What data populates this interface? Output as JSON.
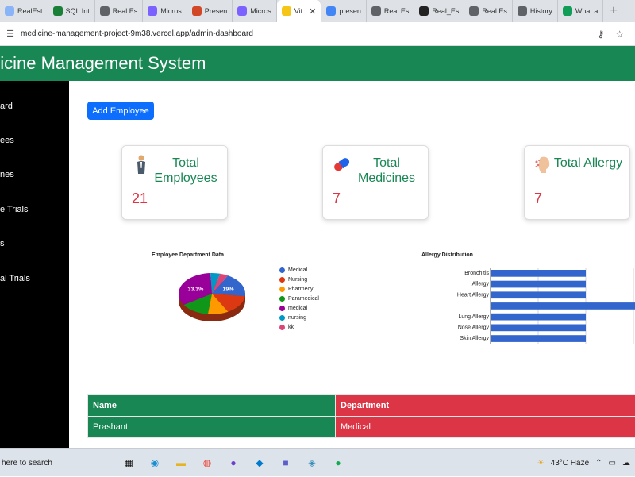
{
  "browser": {
    "tabs": [
      {
        "label": "RealEst",
        "color": "#8ab4f8"
      },
      {
        "label": "SQL Int",
        "color": "#1a7f37"
      },
      {
        "label": "Real Es",
        "color": "#5f6368"
      },
      {
        "label": "Micros",
        "color": "#7b61ff"
      },
      {
        "label": "Presen",
        "color": "#d24726"
      },
      {
        "label": "Micros",
        "color": "#7b61ff"
      },
      {
        "label": "Vit",
        "color": "#f5c518",
        "active": true
      },
      {
        "label": "presen",
        "color": "#4285f4"
      },
      {
        "label": "Real Es",
        "color": "#5f6368"
      },
      {
        "label": "Real_Es",
        "color": "#222222"
      },
      {
        "label": "Real Es",
        "color": "#5f6368"
      },
      {
        "label": "History",
        "color": "#5f6368"
      },
      {
        "label": "What a",
        "color": "#0f9d58"
      }
    ],
    "close_glyph": "✕",
    "new_tab_glyph": "+",
    "url": "medicine-management-project-9m38.vercel.app/admin-dashboard"
  },
  "app": {
    "title": "dicine Management System"
  },
  "sidebar": {
    "items": [
      "ard",
      "ees",
      "nes",
      "e Trials",
      "s",
      "al Trials"
    ]
  },
  "main": {
    "add_button": "Add Employee",
    "cards": [
      {
        "title": "Total Employees",
        "count": "21",
        "icon": "person-icon"
      },
      {
        "title": "Total Medicines",
        "count": "7",
        "icon": "capsule-icon"
      },
      {
        "title": "Total Allergy",
        "count": "7",
        "icon": "allergy-icon"
      }
    ]
  },
  "chart_data": [
    {
      "type": "pie",
      "title": "Employee Department Data",
      "categories": [
        "Medical",
        "Nursing",
        "Pharmecy",
        "Paramedical",
        "medical",
        "nursing",
        "kk"
      ],
      "values": [
        19,
        15,
        10,
        14,
        33.3,
        4.7,
        4
      ],
      "colors": [
        "#3366cc",
        "#dc3912",
        "#ff9900",
        "#109618",
        "#990099",
        "#0099c6",
        "#dd4477"
      ],
      "data_labels": {
        "Medical": "19%",
        "medical": "33.3%"
      }
    },
    {
      "type": "bar",
      "orientation": "horizontal",
      "title": "Allergy Distribution",
      "categories": [
        "Bronchitis",
        "Allergy",
        "Heart Allergy",
        "",
        "Lung Allergy",
        "Nose Allergy",
        "Skin Allergy"
      ],
      "values": [
        1,
        1,
        1,
        2,
        1,
        1,
        1
      ],
      "xlim": [
        0,
        2
      ],
      "xticks": [
        "0.0",
        "0.5",
        "1.0",
        "1.5",
        "2.0"
      ],
      "color": "#3366cc",
      "legend": "C"
    }
  ],
  "table": {
    "headers": [
      "Name",
      "Department"
    ],
    "rows": [
      [
        "Prashant",
        "Medical"
      ]
    ]
  },
  "taskbar": {
    "search": "here to search",
    "weather": "43°C  Haze"
  }
}
